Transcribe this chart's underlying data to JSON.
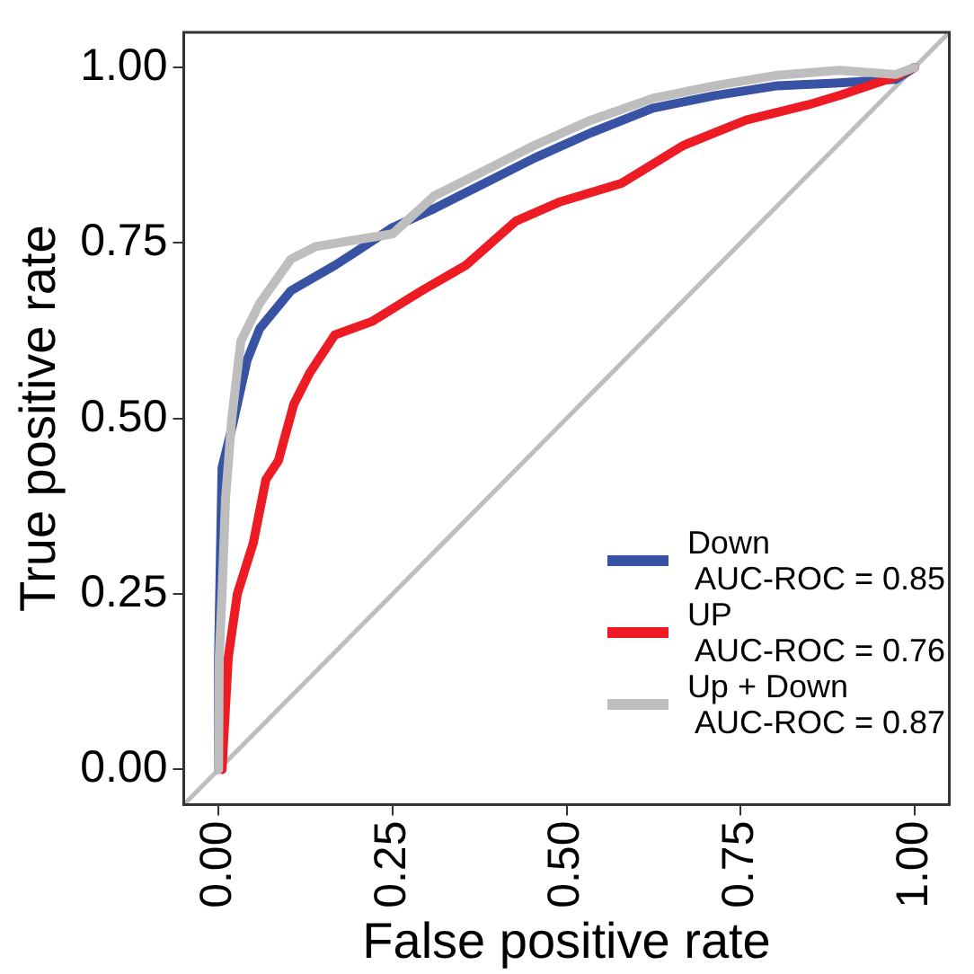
{
  "chart_data": {
    "type": "line",
    "xlabel": "False positive rate",
    "ylabel": "True positive rate",
    "xlim": [
      -0.05,
      1.05
    ],
    "ylim": [
      -0.05,
      1.05
    ],
    "xticks": [
      {
        "value": 0,
        "label": "0.00"
      },
      {
        "value": 0.25,
        "label": "0.25"
      },
      {
        "value": 0.5,
        "label": "0.50"
      },
      {
        "value": 0.75,
        "label": "0.75"
      },
      {
        "value": 1,
        "label": "1.00"
      }
    ],
    "yticks": [
      {
        "value": 0,
        "label": "0.00"
      },
      {
        "value": 0.25,
        "label": "0.25"
      },
      {
        "value": 0.5,
        "label": "0.50"
      },
      {
        "value": 0.75,
        "label": "0.75"
      },
      {
        "value": 1,
        "label": "1.00"
      }
    ],
    "grid": false,
    "legend": "bottom right",
    "marker": "none",
    "line_style": "solid",
    "series": [
      {
        "name": "Down\n AUC-ROC = 0.85",
        "color": "#3953a4",
        "x": [
          0,
          0,
          0.005,
          0.02,
          0.041,
          0.059,
          0.104,
          0.167,
          0.195,
          0.25,
          0.31,
          0.382,
          0.454,
          0.535,
          0.624,
          0.713,
          0.803,
          0.892,
          0.973,
          1
        ],
        "values": [
          0,
          0.16,
          0.43,
          0.49,
          0.583,
          0.628,
          0.682,
          0.718,
          0.736,
          0.772,
          0.799,
          0.835,
          0.871,
          0.907,
          0.942,
          0.96,
          0.974,
          0.978,
          0.983,
          1
        ]
      },
      {
        "name": "UP\n AUC-ROC = 0.76",
        "color": "#ed1c24",
        "x": [
          0.005,
          0.014,
          0.027,
          0.05,
          0.068,
          0.086,
          0.108,
          0.131,
          0.167,
          0.22,
          0.292,
          0.355,
          0.427,
          0.489,
          0.579,
          0.668,
          0.758,
          0.848,
          0.892,
          0.973,
          1
        ],
        "values": [
          0,
          0.16,
          0.25,
          0.323,
          0.413,
          0.44,
          0.52,
          0.565,
          0.619,
          0.638,
          0.682,
          0.718,
          0.781,
          0.808,
          0.835,
          0.889,
          0.925,
          0.947,
          0.96,
          0.987,
          1
        ]
      },
      {
        "name": "Up + Down\n AUC-ROC = 0.87",
        "color": "#bebebe",
        "x": [
          0,
          0.001,
          0.005,
          0.01,
          0.019,
          0.032,
          0.059,
          0.104,
          0.14,
          0.195,
          0.25,
          0.31,
          0.382,
          0.454,
          0.535,
          0.624,
          0.713,
          0.803,
          0.892,
          0.973,
          1
        ],
        "values": [
          0,
          0.16,
          0.25,
          0.385,
          0.5,
          0.61,
          0.664,
          0.727,
          0.745,
          0.754,
          0.763,
          0.817,
          0.853,
          0.889,
          0.925,
          0.956,
          0.974,
          0.989,
          0.996,
          0.99,
          1
        ]
      },
      {
        "color": "#bebebe",
        "x": [
          -0.05,
          1.05
        ],
        "values": [
          -0.05,
          1.05
        ]
      }
    ]
  }
}
